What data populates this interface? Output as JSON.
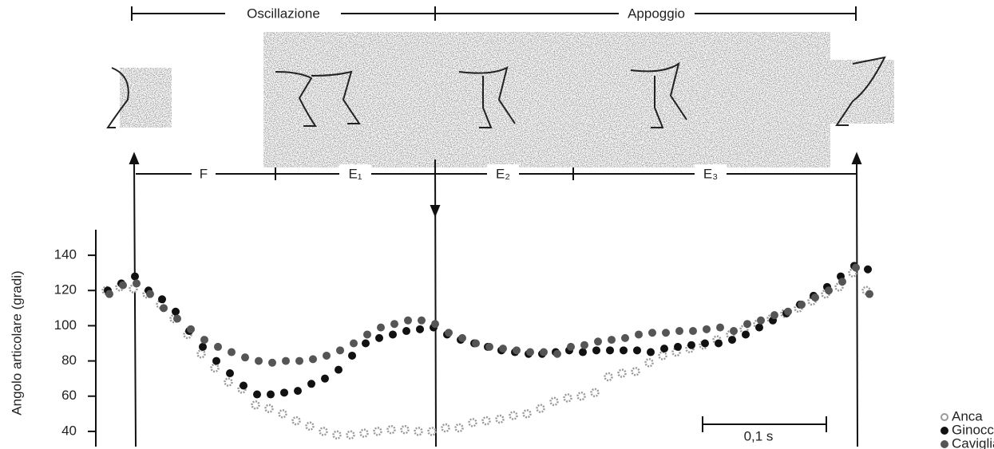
{
  "chart_data": {
    "type": "scatter",
    "y_label": "Angolo articolare (gradi)",
    "phases": [
      "Oscillazione",
      "Appoggio"
    ],
    "subphases": [
      "F",
      "E₁",
      "E₂",
      "E₃"
    ],
    "scale_bar_label": "0,1 s",
    "categories": [
      null,
      null,
      null,
      null,
      null,
      null,
      null,
      null,
      null,
      null,
      null,
      null,
      null,
      null,
      null,
      null,
      null,
      null,
      null,
      null,
      null,
      null,
      null,
      null,
      null,
      null,
      null,
      null,
      null,
      null,
      null,
      null,
      null,
      null,
      null,
      null,
      null,
      null,
      null,
      null,
      null,
      null,
      null,
      null,
      null,
      null,
      null,
      null,
      null,
      null,
      null,
      null,
      null,
      null,
      null,
      null,
      null
    ],
    "series": [
      {
        "name": "Anca",
        "color": "#9a9a9a",
        "values": [
          120,
          122,
          121,
          118,
          112,
          104,
          95,
          84,
          76,
          68,
          64,
          55,
          53,
          50,
          46,
          43,
          40,
          38,
          38,
          39,
          40,
          41,
          41,
          40,
          40,
          42,
          42,
          45,
          46,
          47,
          49,
          50,
          53,
          57,
          59,
          60,
          62,
          71,
          73,
          74,
          79,
          83,
          85,
          87,
          89,
          92,
          95,
          98,
          101,
          104,
          107,
          110,
          114,
          118,
          122,
          130,
          120
        ]
      },
      {
        "name": "Ginocchio",
        "color": "#111111",
        "values": [
          120,
          124,
          128,
          120,
          115,
          108,
          97,
          88,
          80,
          73,
          66,
          61,
          61,
          62,
          63,
          67,
          70,
          75,
          83,
          90,
          93,
          95,
          97,
          98,
          99,
          95,
          92,
          90,
          88,
          86,
          85,
          84,
          84,
          85,
          86,
          85,
          86,
          86,
          86,
          86,
          85,
          87,
          88,
          89,
          90,
          90,
          92,
          95,
          99,
          103,
          107,
          112,
          117,
          122,
          128,
          134,
          132
        ]
      },
      {
        "name": "Caviglia",
        "color": "#555555",
        "values": [
          118,
          123,
          124,
          118,
          110,
          104,
          98,
          92,
          88,
          85,
          82,
          80,
          79,
          80,
          80,
          81,
          83,
          86,
          90,
          95,
          99,
          101,
          103,
          103,
          101,
          96,
          93,
          90,
          88,
          87,
          86,
          85,
          85,
          84,
          88,
          89,
          91,
          92,
          93,
          95,
          96,
          96,
          97,
          97,
          98,
          99,
          97,
          101,
          103,
          106,
          108,
          112,
          116,
          120,
          125,
          133,
          118
        ]
      }
    ],
    "ylim": [
      30,
      150
    ],
    "yticks": [
      40,
      60,
      80,
      100,
      120,
      140
    ]
  }
}
